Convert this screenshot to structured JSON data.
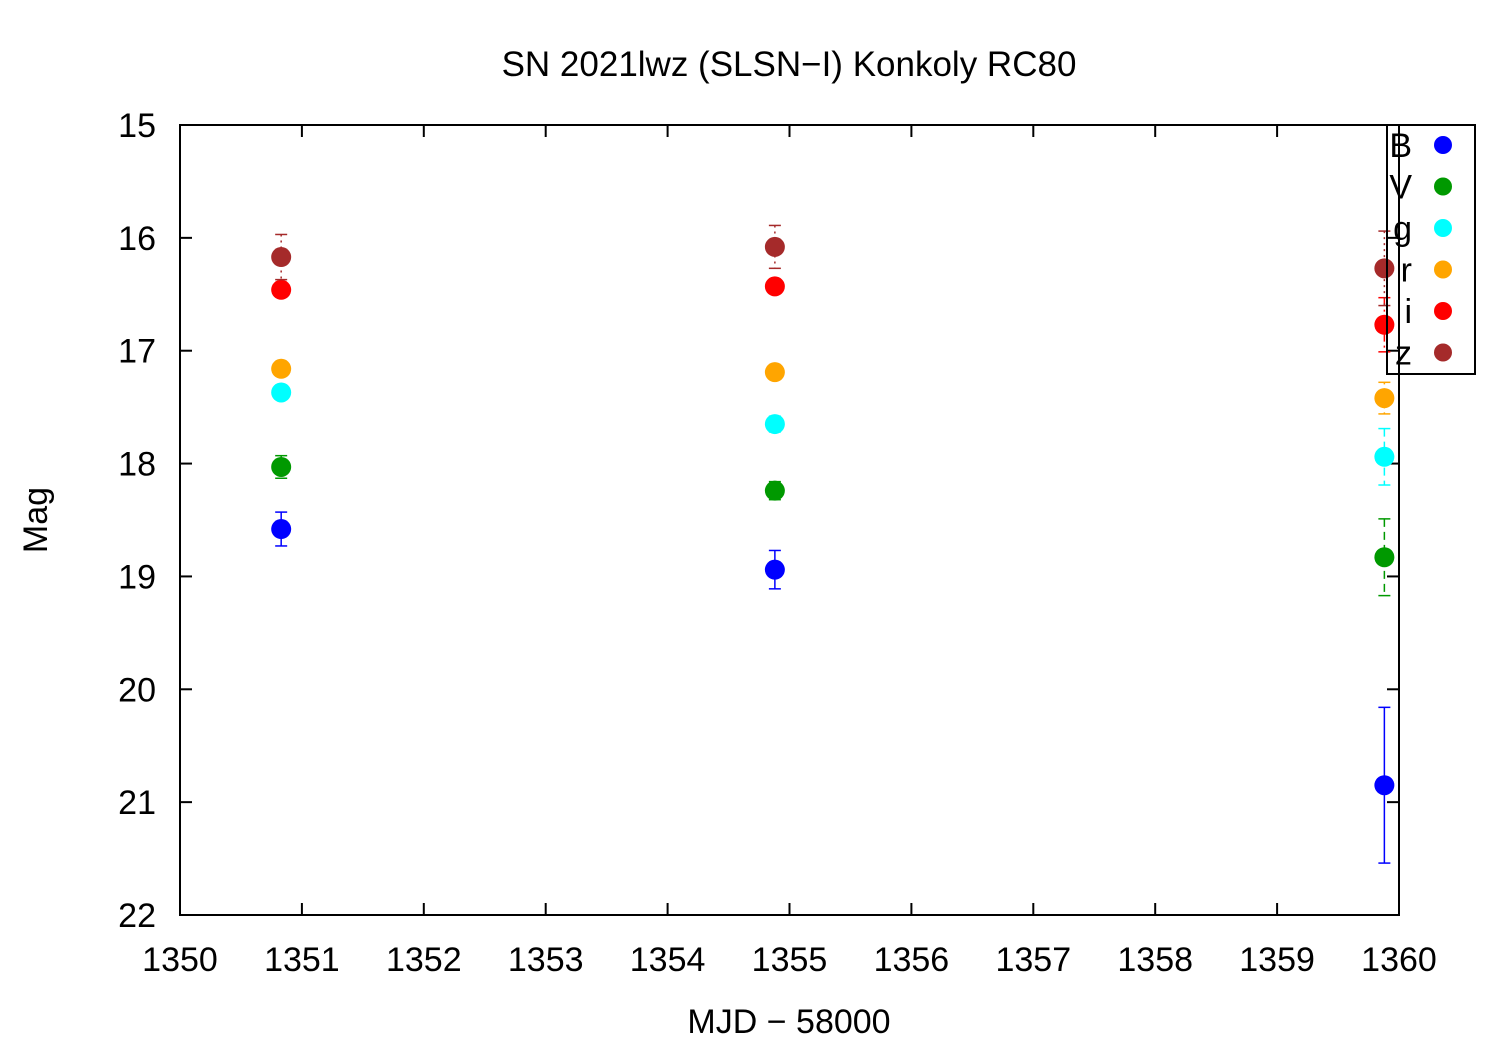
{
  "chart_data": {
    "type": "scatter",
    "title": "SN 2021lwz (SLSN−I) Konkoly RC80",
    "xlabel": "MJD − 58000",
    "ylabel": "Mag",
    "xlim": [
      1350,
      1360
    ],
    "ylim": [
      22,
      15
    ],
    "y_inverted": true,
    "x_ticks": [
      "1350",
      "1351",
      "1352",
      "1353",
      "1354",
      "1355",
      "1356",
      "1357",
      "1358",
      "1359",
      "1360"
    ],
    "y_ticks": [
      "15",
      "16",
      "17",
      "18",
      "19",
      "20",
      "21",
      "22"
    ],
    "grid": false,
    "legend_position": "top-right",
    "series": [
      {
        "name": "B",
        "color": "#0000ff",
        "errorbar_style": "solid",
        "points": [
          {
            "x": 1350.83,
            "y": 18.58,
            "err": 0.15
          },
          {
            "x": 1354.88,
            "y": 18.94,
            "err": 0.17
          },
          {
            "x": 1359.88,
            "y": 20.85,
            "err": 0.69
          }
        ]
      },
      {
        "name": "V",
        "color": "#009900",
        "errorbar_style": "dashed",
        "points": [
          {
            "x": 1350.83,
            "y": 18.03,
            "err": 0.1
          },
          {
            "x": 1354.88,
            "y": 18.24,
            "err": 0.08
          },
          {
            "x": 1359.88,
            "y": 18.83,
            "err": 0.34
          }
        ]
      },
      {
        "name": "g",
        "color": "#00ffff",
        "errorbar_style": "dashed",
        "points": [
          {
            "x": 1350.83,
            "y": 17.37,
            "err": 0.05
          },
          {
            "x": 1354.88,
            "y": 17.65,
            "err": 0.07
          },
          {
            "x": 1359.88,
            "y": 17.94,
            "err": 0.25
          }
        ]
      },
      {
        "name": "r",
        "color": "#ffa500",
        "errorbar_style": "dotted",
        "points": [
          {
            "x": 1350.83,
            "y": 17.16,
            "err": 0.05
          },
          {
            "x": 1354.88,
            "y": 17.19,
            "err": 0.05
          },
          {
            "x": 1359.88,
            "y": 17.42,
            "err": 0.14
          }
        ]
      },
      {
        "name": "i",
        "color": "#ff0000",
        "errorbar_style": "dash-dot",
        "points": [
          {
            "x": 1350.83,
            "y": 16.46,
            "err": 0.06
          },
          {
            "x": 1354.88,
            "y": 16.43,
            "err": 0.05
          },
          {
            "x": 1359.88,
            "y": 16.77,
            "err": 0.24
          }
        ]
      },
      {
        "name": "z",
        "color": "#a52a2a",
        "errorbar_style": "dotted",
        "points": [
          {
            "x": 1350.83,
            "y": 16.17,
            "err": 0.2
          },
          {
            "x": 1354.88,
            "y": 16.08,
            "err": 0.19
          },
          {
            "x": 1359.88,
            "y": 16.27,
            "err": 0.33
          }
        ]
      }
    ]
  }
}
